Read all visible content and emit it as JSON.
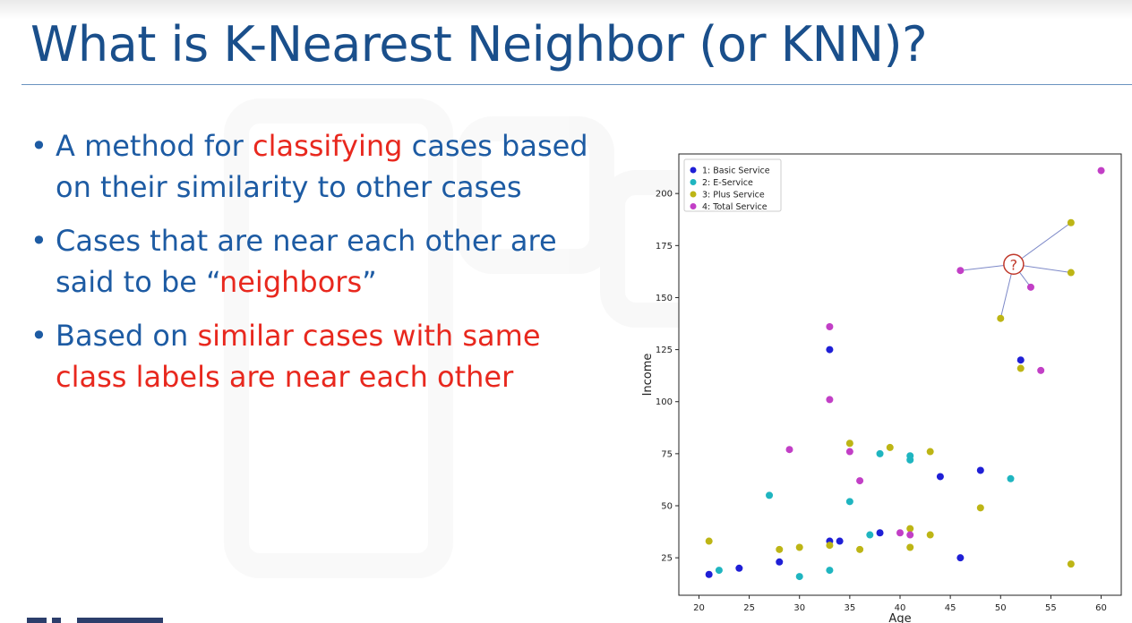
{
  "slide": {
    "title": "What is K-Nearest Neighbor (or KNN)?",
    "bullets": [
      {
        "parts": [
          {
            "text": "A method for ",
            "hl": false
          },
          {
            "text": "classifying",
            "hl": true
          },
          {
            "text": " cases based on their similarity to other cases",
            "hl": false
          }
        ]
      },
      {
        "parts": [
          {
            "text": "Cases that are near each other are said to be “",
            "hl": false
          },
          {
            "text": "neighbors",
            "hl": true
          },
          {
            "text": "”",
            "hl": false
          }
        ]
      },
      {
        "parts": [
          {
            "text": "Based on ",
            "hl": false
          },
          {
            "text": "similar cases with same class labels are near each other",
            "hl": true
          }
        ]
      }
    ],
    "colors": {
      "title": "#1a4f8b",
      "text": "#1d5ba3",
      "highlight": "#e8281e"
    }
  },
  "chart_data": {
    "type": "scatter",
    "xlabel": "Age",
    "ylabel": "Income",
    "xlim": [
      18,
      62
    ],
    "ylim": [
      7,
      219
    ],
    "xticks": [
      20,
      25,
      30,
      35,
      40,
      45,
      50,
      55,
      60
    ],
    "yticks": [
      25,
      50,
      75,
      100,
      125,
      150,
      175,
      200
    ],
    "legend_position": "top-left",
    "series": [
      {
        "name": "1: Basic Service",
        "color": "#1f1fd6",
        "points": [
          [
            21,
            17
          ],
          [
            24,
            20
          ],
          [
            28,
            23
          ],
          [
            33,
            33
          ],
          [
            34,
            33
          ],
          [
            38,
            37
          ],
          [
            33,
            125
          ],
          [
            44,
            64
          ],
          [
            48,
            67
          ],
          [
            46,
            25
          ],
          [
            52,
            120
          ]
        ]
      },
      {
        "name": "2: E-Service",
        "color": "#1fb5c0",
        "points": [
          [
            22,
            19
          ],
          [
            27,
            55
          ],
          [
            30,
            16
          ],
          [
            33,
            19
          ],
          [
            35,
            52
          ],
          [
            37,
            36
          ],
          [
            38,
            75
          ],
          [
            41,
            72
          ],
          [
            41,
            74
          ],
          [
            51,
            63
          ]
        ]
      },
      {
        "name": "3: Plus Service",
        "color": "#bdb515",
        "points": [
          [
            21,
            33
          ],
          [
            28,
            29
          ],
          [
            30,
            30
          ],
          [
            33,
            31
          ],
          [
            35,
            80
          ],
          [
            36,
            29
          ],
          [
            39,
            78
          ],
          [
            41,
            39
          ],
          [
            41,
            30
          ],
          [
            43,
            76
          ],
          [
            43,
            36
          ],
          [
            48,
            49
          ],
          [
            50,
            140
          ],
          [
            52,
            116
          ],
          [
            57,
            186
          ],
          [
            57,
            162
          ],
          [
            57,
            22
          ]
        ]
      },
      {
        "name": "4: Total Service",
        "color": "#c23fc6",
        "points": [
          [
            29,
            77
          ],
          [
            33,
            136
          ],
          [
            33,
            101
          ],
          [
            35,
            76
          ],
          [
            36,
            62
          ],
          [
            40,
            37
          ],
          [
            41,
            36
          ],
          [
            46,
            163
          ],
          [
            53,
            155
          ],
          [
            54,
            115
          ],
          [
            60,
            211
          ]
        ]
      }
    ],
    "query_point": {
      "label": "?",
      "x": 51.3,
      "y": 166,
      "neighbors": [
        [
          46,
          163
        ],
        [
          50,
          140
        ],
        [
          53,
          155
        ],
        [
          57,
          186
        ],
        [
          57,
          162
        ]
      ]
    }
  }
}
